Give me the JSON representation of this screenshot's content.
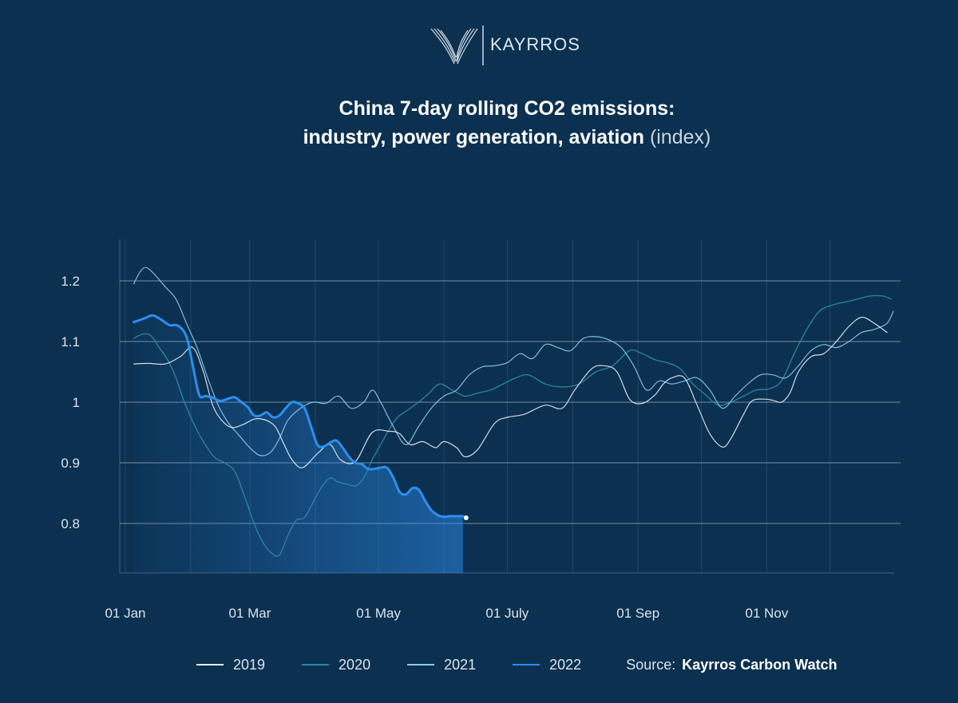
{
  "logo": {
    "text": "KAYRROS"
  },
  "title": {
    "line1": "China 7-day rolling CO2 emissions:",
    "line2": "industry, power generation, aviation",
    "unit": "(index)"
  },
  "source": {
    "label": "Source:",
    "value": "Kayrros Carbon Watch"
  },
  "colors": {
    "background": "#0b3050",
    "2019": "#e9eef3",
    "2020": "#2b87a2",
    "2021": "#8ecbef",
    "2022": "#2d8ef0"
  },
  "chart_data": {
    "type": "line",
    "xlabel": "",
    "ylabel": "",
    "x_unit": "day of year",
    "xlim": [
      1,
      365
    ],
    "ylim": [
      0.71,
      1.26
    ],
    "y_ticks": [
      0.8,
      0.9,
      1.0,
      1.1,
      1.2
    ],
    "y_tick_labels": [
      "0.8",
      "0.9",
      "1",
      "1.1",
      "1.2"
    ],
    "x_ticks": [
      {
        "day": 1,
        "label": "01 Jan"
      },
      {
        "day": 60,
        "label": "01 Mar"
      },
      {
        "day": 121,
        "label": "01 May"
      },
      {
        "day": 182,
        "label": "01 July"
      },
      {
        "day": 244,
        "label": "01 Sep"
      },
      {
        "day": 305,
        "label": "01 Nov"
      }
    ],
    "month_gridlines": [
      1,
      32,
      60,
      91,
      121,
      152,
      182,
      213,
      244,
      274,
      305,
      335
    ],
    "grid": true,
    "legend": "bottom",
    "series": [
      {
        "name": "2019",
        "x": [
          5,
          12,
          20,
          27,
          33,
          38,
          43,
          50,
          56,
          62,
          67,
          72,
          76,
          80,
          85,
          92,
          98,
          103,
          110,
          118,
          126,
          131,
          136,
          142,
          148,
          152,
          158,
          162,
          168,
          176,
          182,
          190,
          200,
          208,
          214,
          222,
          228,
          234,
          240,
          246,
          252,
          256,
          260,
          266,
          272,
          278,
          284,
          288,
          294,
          298,
          304,
          308,
          312,
          316,
          320,
          326,
          332,
          338,
          344,
          350,
          356,
          362
        ],
        "y": [
          1.063,
          1.064,
          1.063,
          1.075,
          1.09,
          1.05,
          0.99,
          0.96,
          0.962,
          0.972,
          0.971,
          0.96,
          0.932,
          0.905,
          0.892,
          0.915,
          0.93,
          0.905,
          0.902,
          0.95,
          0.952,
          0.948,
          0.93,
          0.935,
          0.925,
          0.935,
          0.925,
          0.91,
          0.922,
          0.965,
          0.975,
          0.98,
          0.995,
          0.99,
          1.02,
          1.055,
          1.06,
          1.05,
          1.005,
          0.998,
          1.012,
          1.03,
          1.04,
          1.04,
          0.995,
          0.948,
          0.926,
          0.94,
          0.98,
          1.002,
          1.005,
          1.003,
          1.0,
          1.015,
          1.05,
          1.075,
          1.08,
          1.1,
          1.125,
          1.14,
          1.13,
          1.115
        ]
      },
      {
        "name": "2020",
        "x": [
          5,
          9,
          13,
          17,
          21,
          25,
          29,
          34,
          38,
          43,
          48,
          53,
          58,
          62,
          66,
          70,
          74,
          78,
          82,
          86,
          90,
          94,
          98,
          102,
          106,
          110,
          114,
          118,
          122,
          126,
          130,
          134,
          140,
          145,
          150,
          156,
          162,
          168,
          174,
          180,
          186,
          192,
          200,
          208,
          216,
          224,
          232,
          240,
          246,
          252,
          258,
          264,
          270,
          276,
          282,
          288,
          294,
          300,
          306,
          312,
          318,
          324,
          330,
          336,
          342,
          348,
          354,
          360,
          364
        ],
        "y": [
          1.105,
          1.112,
          1.11,
          1.09,
          1.07,
          1.04,
          1.0,
          0.96,
          0.935,
          0.91,
          0.9,
          0.885,
          0.84,
          0.8,
          0.77,
          0.752,
          0.748,
          0.78,
          0.805,
          0.81,
          0.835,
          0.86,
          0.875,
          0.868,
          0.865,
          0.862,
          0.875,
          0.905,
          0.93,
          0.955,
          0.975,
          0.985,
          1.0,
          1.015,
          1.03,
          1.02,
          1.01,
          1.015,
          1.02,
          1.03,
          1.04,
          1.045,
          1.03,
          1.025,
          1.03,
          1.05,
          1.06,
          1.085,
          1.08,
          1.07,
          1.065,
          1.055,
          1.03,
          1.012,
          0.995,
          1.0,
          1.01,
          1.02,
          1.022,
          1.035,
          1.08,
          1.12,
          1.15,
          1.16,
          1.165,
          1.17,
          1.175,
          1.175,
          1.17
        ]
      },
      {
        "name": "2021",
        "x": [
          5,
          8,
          11,
          15,
          20,
          25,
          30,
          35,
          40,
          45,
          50,
          55,
          60,
          65,
          70,
          74,
          78,
          84,
          90,
          96,
          102,
          108,
          114,
          118,
          122,
          128,
          134,
          140,
          146,
          152,
          158,
          164,
          170,
          176,
          182,
          188,
          194,
          200,
          206,
          212,
          218,
          224,
          230,
          236,
          242,
          248,
          254,
          260,
          266,
          272,
          278,
          284,
          290,
          296,
          302,
          308,
          314,
          320,
          326,
          332,
          338,
          344,
          350,
          356,
          362,
          365
        ],
        "y": [
          1.195,
          1.215,
          1.222,
          1.21,
          1.19,
          1.17,
          1.13,
          1.09,
          1.04,
          0.995,
          0.965,
          0.945,
          0.925,
          0.912,
          0.918,
          0.94,
          0.97,
          0.99,
          1.0,
          0.998,
          1.01,
          0.99,
          1.0,
          1.02,
          1.0,
          0.96,
          0.93,
          0.96,
          0.99,
          1.01,
          1.02,
          1.045,
          1.058,
          1.06,
          1.065,
          1.08,
          1.072,
          1.095,
          1.09,
          1.085,
          1.105,
          1.108,
          1.103,
          1.09,
          1.06,
          1.02,
          1.035,
          1.03,
          1.035,
          1.04,
          1.02,
          0.99,
          1.01,
          1.03,
          1.045,
          1.045,
          1.04,
          1.06,
          1.085,
          1.095,
          1.09,
          1.1,
          1.115,
          1.12,
          1.13,
          1.15
        ]
      },
      {
        "name": "2022",
        "x": [
          5,
          10,
          14,
          18,
          22,
          26,
          30,
          33,
          36,
          39,
          42,
          46,
          50,
          53,
          56,
          59,
          62,
          65,
          68,
          71,
          74,
          77,
          80,
          83,
          86,
          89,
          92,
          95,
          98,
          101,
          104,
          107,
          110,
          113,
          116,
          119,
          122,
          125,
          128,
          131,
          134,
          137,
          140,
          143,
          146,
          149,
          152,
          155,
          158,
          161
        ],
        "y": [
          1.132,
          1.138,
          1.143,
          1.136,
          1.127,
          1.126,
          1.108,
          1.06,
          1.012,
          1.01,
          1.008,
          1.002,
          1.006,
          1.008,
          1.0,
          0.992,
          0.978,
          0.978,
          0.983,
          0.975,
          0.978,
          0.99,
          1.0,
          0.998,
          0.99,
          0.96,
          0.93,
          0.927,
          0.933,
          0.937,
          0.925,
          0.91,
          0.9,
          0.898,
          0.89,
          0.89,
          0.892,
          0.892,
          0.876,
          0.852,
          0.848,
          0.858,
          0.856,
          0.838,
          0.822,
          0.814,
          0.811,
          0.812,
          0.812,
          0.812
        ]
      }
    ]
  }
}
